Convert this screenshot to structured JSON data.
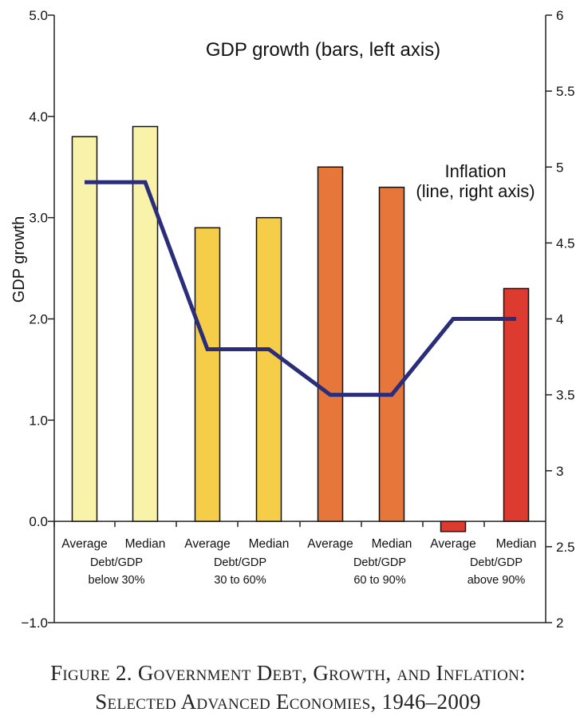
{
  "chart_data": {
    "type": "bar",
    "title": "GDP growth (bars, left axis)",
    "line_label_1": "Inflation",
    "line_label_2": "(line, right axis)",
    "ylabel": "GDP growth",
    "ylim": [
      -1.0,
      5.0
    ],
    "y2lim": [
      2,
      6
    ],
    "y_ticks": [
      "−1.0",
      "0.0",
      "1.0",
      "2.0",
      "3.0",
      "4.0",
      "5.0"
    ],
    "y2_ticks": [
      "2",
      "2.5",
      "3",
      "3.5",
      "4",
      "4.5",
      "5",
      "5.5",
      "6"
    ],
    "categories": [
      "Average",
      "Median",
      "Average",
      "Median",
      "Average",
      "Median",
      "Average",
      "Median"
    ],
    "groups": [
      {
        "line1": "Debt/GDP",
        "line2": "below 30%"
      },
      {
        "line1": "Debt/GDP",
        "line2": "30 to 60%"
      },
      {
        "line1": "Debt/GDP",
        "line2": "60 to 90%"
      },
      {
        "line1": "Debt/GDP",
        "line2": "above 90%"
      }
    ],
    "series": [
      {
        "name": "GDP growth",
        "type": "bar",
        "axis": "left",
        "values": [
          3.8,
          3.9,
          2.9,
          3.0,
          3.5,
          3.3,
          -0.1,
          2.3
        ]
      },
      {
        "name": "Inflation",
        "type": "line",
        "axis": "right",
        "values": [
          4.9,
          4.9,
          3.8,
          3.8,
          3.5,
          3.5,
          4.0,
          4.0
        ]
      }
    ],
    "colors": {
      "bars": [
        "#f8f3a8",
        "#f8f3a8",
        "#f5cd48",
        "#f5cd48",
        "#e6763a",
        "#e6763a",
        "#dd3b2f",
        "#dd3b2f"
      ],
      "line": "#2b2d7a",
      "axis": "#222222"
    }
  },
  "caption": {
    "line1": "Figure 2. Government Debt, Growth, and Inflation:",
    "line2": "Selected Advanced Economies, 1946–2009"
  }
}
